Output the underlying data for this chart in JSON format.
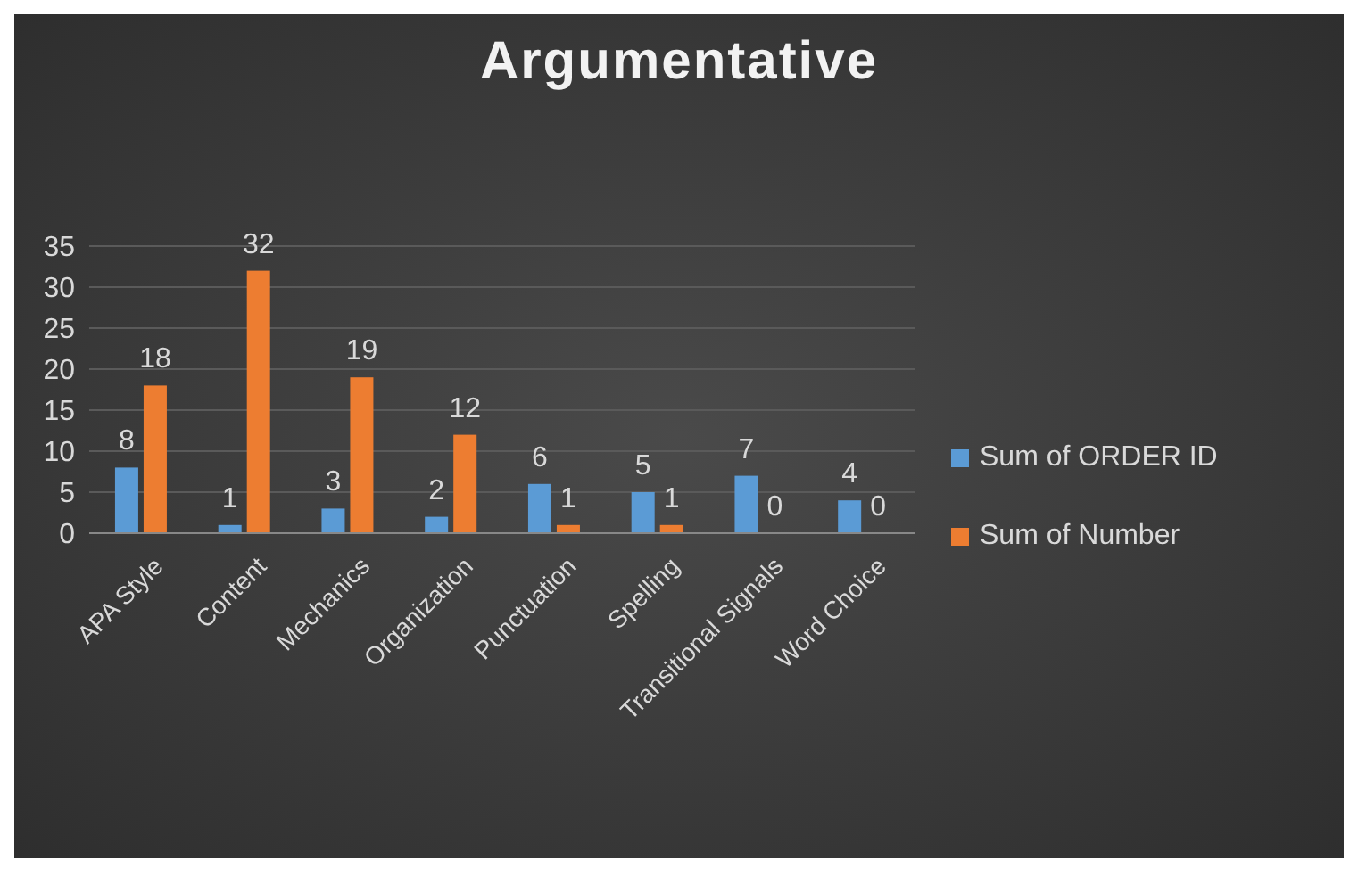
{
  "chart_data": {
    "type": "bar",
    "title": "Argumentative",
    "categories": [
      "APA Style",
      "Content",
      "Mechanics",
      "Organization",
      "Punctuation",
      "Spelling",
      "Transitional Signals",
      "Word Choice"
    ],
    "series": [
      {
        "name": "Sum of ORDER ID",
        "color": "#5b9bd5",
        "values": [
          8,
          1,
          3,
          2,
          6,
          5,
          7,
          4
        ]
      },
      {
        "name": "Sum of Number",
        "color": "#ed7d31",
        "values": [
          18,
          32,
          19,
          12,
          1,
          1,
          0,
          0
        ]
      }
    ],
    "ylim": [
      0,
      35
    ],
    "yticks": [
      0,
      5,
      10,
      15,
      20,
      25,
      30,
      35
    ],
    "grid": "y",
    "legend": "right",
    "data_labels": true
  }
}
